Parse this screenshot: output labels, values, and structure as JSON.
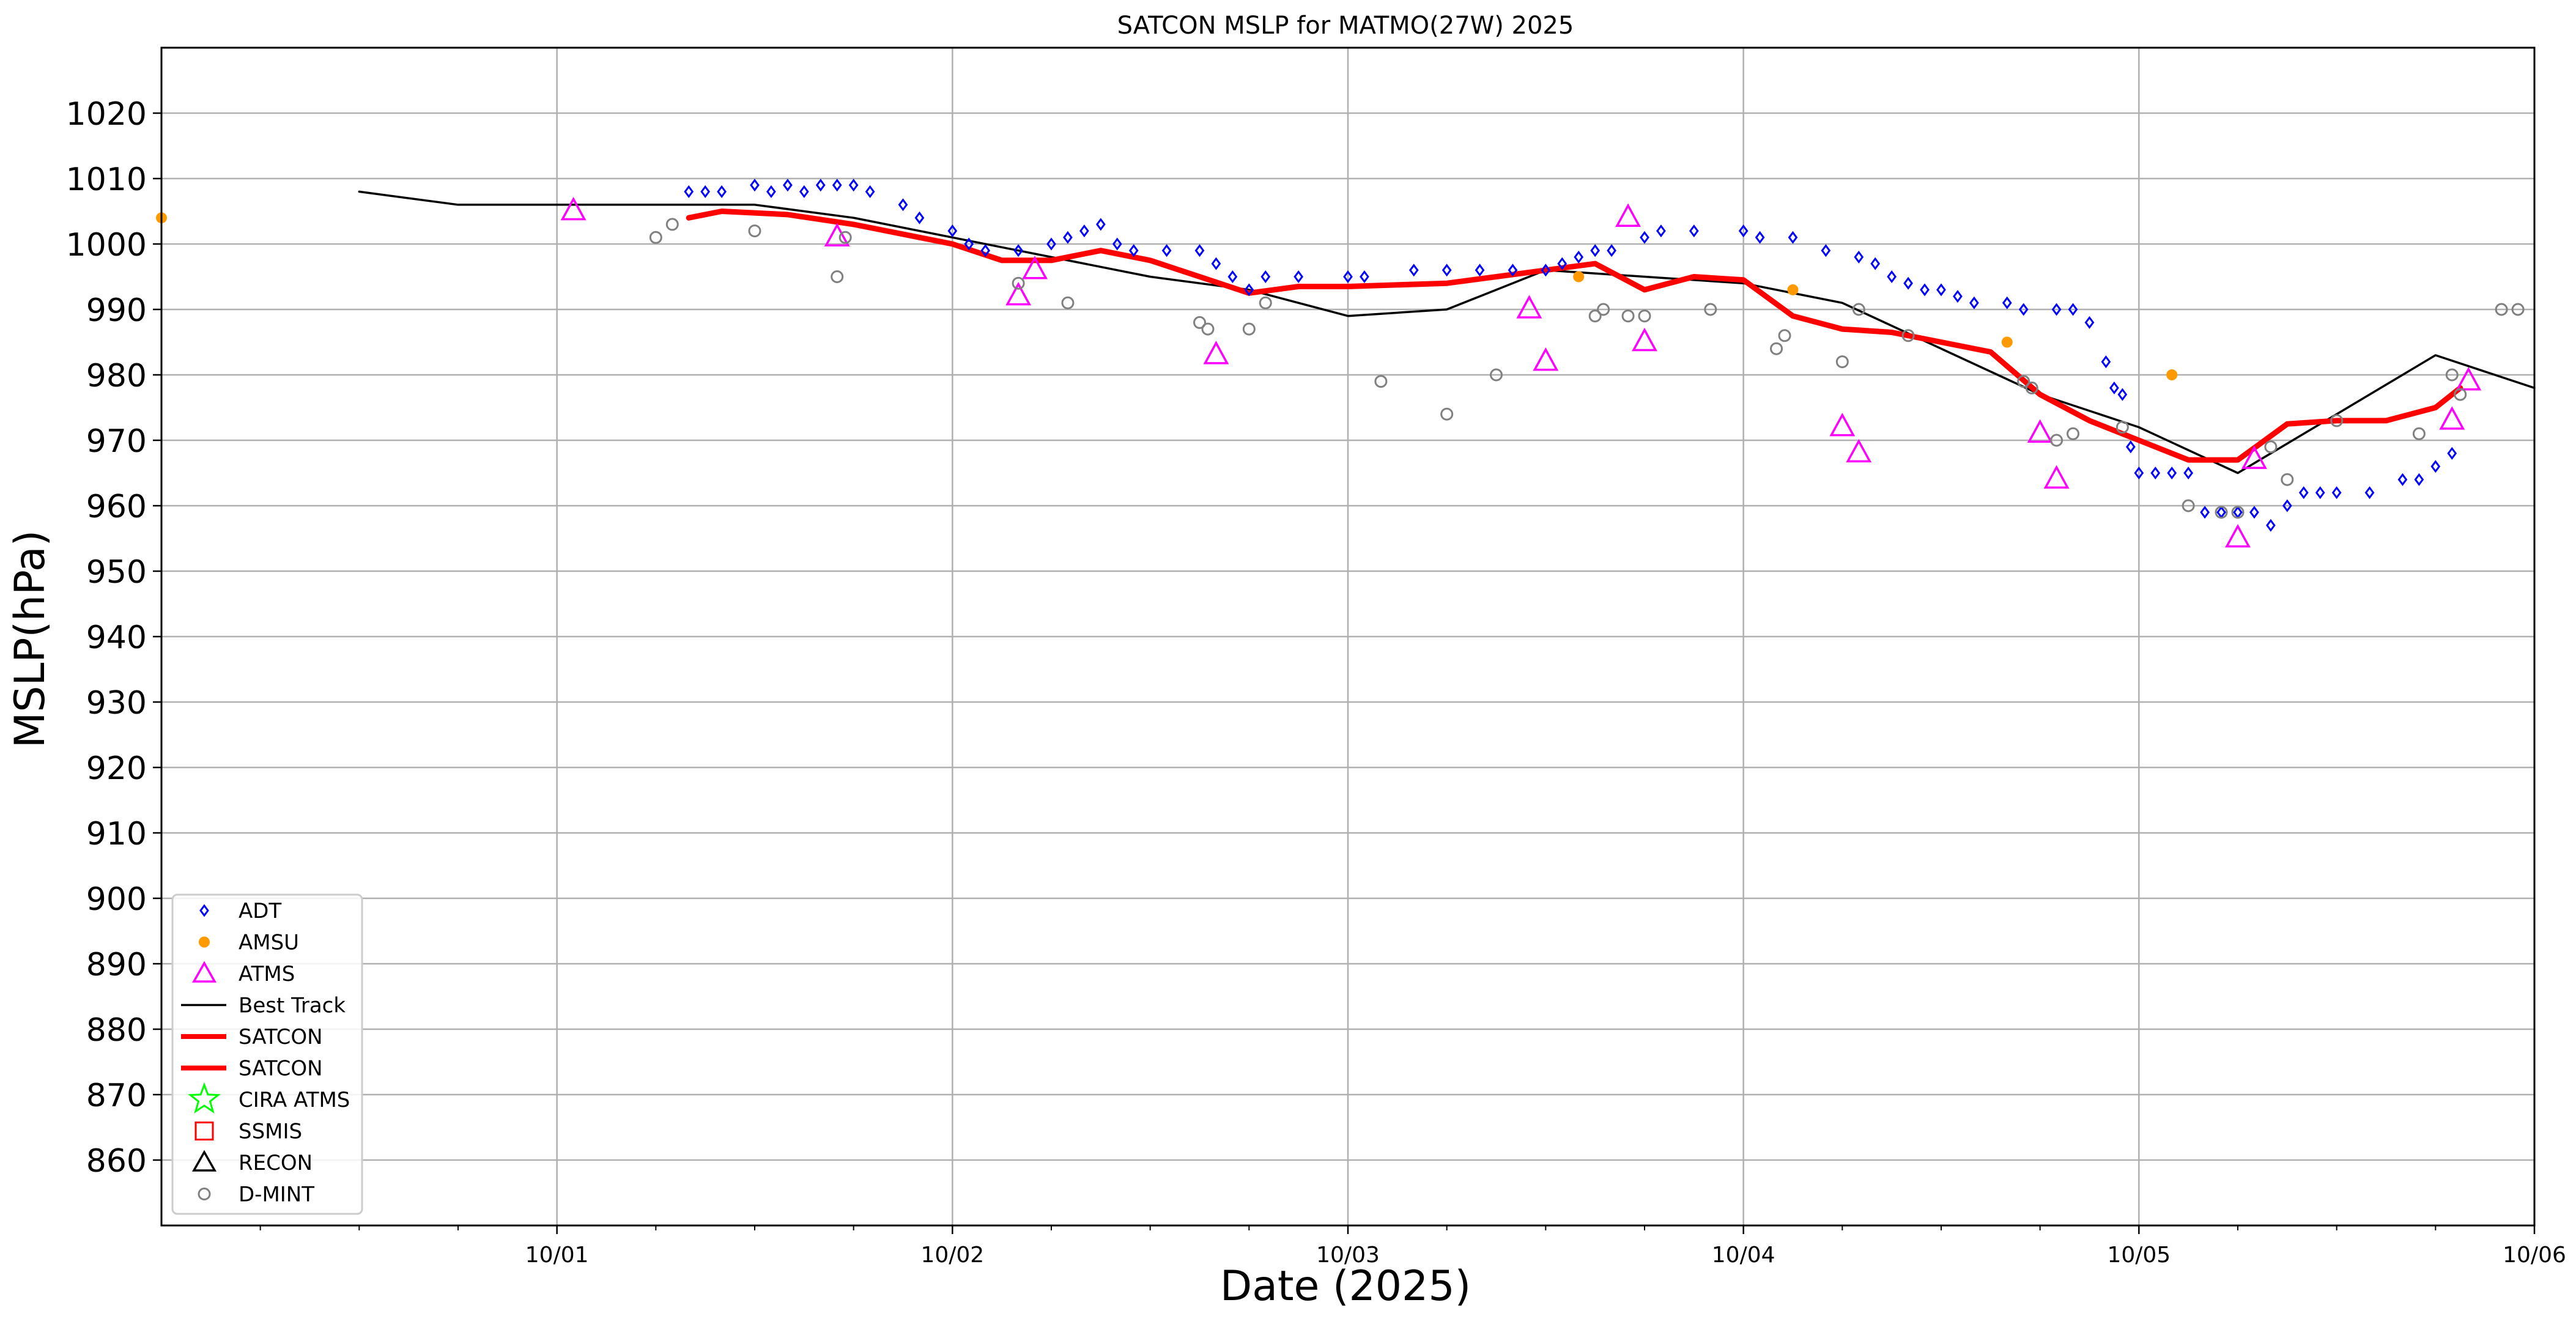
{
  "chart_data": {
    "type": "scatter",
    "title": "SATCON MSLP for MATMO(27W) 2025",
    "xlabel": "Date (2025)",
    "ylabel": "MSLP(hPa)",
    "xlim": [
      "2025-09-30 00:00",
      "2025-10-06 00:00"
    ],
    "ylim": [
      850,
      1030
    ],
    "x_ticks": [
      "10/01",
      "10/02",
      "10/03",
      "10/04",
      "10/05",
      "10/06"
    ],
    "y_ticks": [
      860,
      870,
      880,
      890,
      900,
      910,
      920,
      930,
      940,
      950,
      960,
      970,
      980,
      990,
      1000,
      1010,
      1020
    ],
    "grid": true,
    "legend_position": "lower-left",
    "legend": [
      {
        "label": "ADT",
        "marker": "diamond",
        "color": "#0000ff"
      },
      {
        "label": "AMSU",
        "marker": "dot",
        "color": "#ff9900"
      },
      {
        "label": "ATMS",
        "marker": "triangle",
        "color": "#ff00ff"
      },
      {
        "label": "Best Track",
        "marker": "line",
        "color": "#000000"
      },
      {
        "label": "SATCON",
        "marker": "thick-line",
        "color": "#ff0000"
      },
      {
        "label": "SATCON",
        "marker": "thick-line",
        "color": "#ff0000"
      },
      {
        "label": "CIRA ATMS",
        "marker": "star",
        "color": "#00ff00"
      },
      {
        "label": "SSMIS",
        "marker": "square",
        "color": "#ff0000"
      },
      {
        "label": "RECON",
        "marker": "triangle",
        "color": "#000000"
      },
      {
        "label": "D-MINT",
        "marker": "circle",
        "color": "#808080"
      }
    ],
    "series": [
      {
        "name": "Best Track",
        "style": "line",
        "color": "#000000",
        "points": [
          [
            "2025-09-30 12:00",
            1008
          ],
          [
            "2025-09-30 18:00",
            1006
          ],
          [
            "2025-10-01 00:00",
            1006
          ],
          [
            "2025-10-01 06:00",
            1006
          ],
          [
            "2025-10-01 12:00",
            1006
          ],
          [
            "2025-10-01 18:00",
            1004
          ],
          [
            "2025-10-02 00:00",
            1001
          ],
          [
            "2025-10-02 06:00",
            998
          ],
          [
            "2025-10-02 12:00",
            995
          ],
          [
            "2025-10-02 18:00",
            993
          ],
          [
            "2025-10-03 00:00",
            989
          ],
          [
            "2025-10-03 06:00",
            990
          ],
          [
            "2025-10-03 12:00",
            996
          ],
          [
            "2025-10-03 18:00",
            995
          ],
          [
            "2025-10-04 00:00",
            994
          ],
          [
            "2025-10-04 06:00",
            991
          ],
          [
            "2025-10-04 12:00",
            984
          ],
          [
            "2025-10-04 18:00",
            977
          ],
          [
            "2025-10-05 00:00",
            972
          ],
          [
            "2025-10-05 06:00",
            965
          ],
          [
            "2025-10-05 12:00",
            974
          ],
          [
            "2025-10-05 18:00",
            983
          ],
          [
            "2025-10-06 00:00",
            978
          ]
        ]
      },
      {
        "name": "SATCON",
        "style": "thick-line",
        "color": "#ff0000",
        "points": [
          [
            "2025-10-01 08:00",
            1004
          ],
          [
            "2025-10-01 10:00",
            1005
          ],
          [
            "2025-10-01 14:00",
            1004.5
          ],
          [
            "2025-10-01 18:00",
            1003
          ],
          [
            "2025-10-01 22:00",
            1001
          ],
          [
            "2025-10-02 00:00",
            1000
          ],
          [
            "2025-10-02 03:00",
            997.5
          ],
          [
            "2025-10-02 06:00",
            997.5
          ],
          [
            "2025-10-02 09:00",
            999
          ],
          [
            "2025-10-02 12:00",
            997.5
          ],
          [
            "2025-10-02 15:00",
            995
          ],
          [
            "2025-10-02 18:00",
            992.5
          ],
          [
            "2025-10-02 21:00",
            993.5
          ],
          [
            "2025-10-03 00:00",
            993.5
          ],
          [
            "2025-10-03 06:00",
            994
          ],
          [
            "2025-10-03 12:00",
            996
          ],
          [
            "2025-10-03 15:00",
            997
          ],
          [
            "2025-10-03 18:00",
            993
          ],
          [
            "2025-10-03 21:00",
            995
          ],
          [
            "2025-10-04 00:00",
            994.5
          ],
          [
            "2025-10-04 03:00",
            989
          ],
          [
            "2025-10-04 06:00",
            987
          ],
          [
            "2025-10-04 09:00",
            986.5
          ],
          [
            "2025-10-04 12:00",
            985
          ],
          [
            "2025-10-04 15:00",
            983.5
          ],
          [
            "2025-10-04 18:00",
            977
          ],
          [
            "2025-10-04 21:00",
            973
          ],
          [
            "2025-10-05 00:00",
            970
          ],
          [
            "2025-10-05 03:00",
            967
          ],
          [
            "2025-10-05 06:00",
            967
          ],
          [
            "2025-10-05 09:00",
            972.5
          ],
          [
            "2025-10-05 12:00",
            973
          ],
          [
            "2025-10-05 15:00",
            973
          ],
          [
            "2025-10-05 18:00",
            975
          ],
          [
            "2025-10-05 19:30",
            978
          ]
        ]
      },
      {
        "name": "ADT",
        "style": "diamond",
        "color": "#0000ff",
        "points": [
          [
            "2025-10-01 08:00",
            1008
          ],
          [
            "2025-10-01 09:00",
            1008
          ],
          [
            "2025-10-01 10:00",
            1008
          ],
          [
            "2025-10-01 12:00",
            1009
          ],
          [
            "2025-10-01 13:00",
            1008
          ],
          [
            "2025-10-01 14:00",
            1009
          ],
          [
            "2025-10-01 15:00",
            1008
          ],
          [
            "2025-10-01 16:00",
            1009
          ],
          [
            "2025-10-01 17:00",
            1009
          ],
          [
            "2025-10-01 18:00",
            1009
          ],
          [
            "2025-10-01 19:00",
            1008
          ],
          [
            "2025-10-01 21:00",
            1006
          ],
          [
            "2025-10-01 22:00",
            1004
          ],
          [
            "2025-10-02 00:00",
            1002
          ],
          [
            "2025-10-02 01:00",
            1000
          ],
          [
            "2025-10-02 02:00",
            999
          ],
          [
            "2025-10-02 04:00",
            999
          ],
          [
            "2025-10-02 06:00",
            1000
          ],
          [
            "2025-10-02 07:00",
            1001
          ],
          [
            "2025-10-02 08:00",
            1002
          ],
          [
            "2025-10-02 09:00",
            1003
          ],
          [
            "2025-10-02 10:00",
            1000
          ],
          [
            "2025-10-02 11:00",
            999
          ],
          [
            "2025-10-02 13:00",
            999
          ],
          [
            "2025-10-02 15:00",
            999
          ],
          [
            "2025-10-02 16:00",
            997
          ],
          [
            "2025-10-02 17:00",
            995
          ],
          [
            "2025-10-02 18:00",
            993
          ],
          [
            "2025-10-02 19:00",
            995
          ],
          [
            "2025-10-02 21:00",
            995
          ],
          [
            "2025-10-03 00:00",
            995
          ],
          [
            "2025-10-03 01:00",
            995
          ],
          [
            "2025-10-03 04:00",
            996
          ],
          [
            "2025-10-03 06:00",
            996
          ],
          [
            "2025-10-03 08:00",
            996
          ],
          [
            "2025-10-03 10:00",
            996
          ],
          [
            "2025-10-03 12:00",
            996
          ],
          [
            "2025-10-03 13:00",
            997
          ],
          [
            "2025-10-03 14:00",
            998
          ],
          [
            "2025-10-03 15:00",
            999
          ],
          [
            "2025-10-03 16:00",
            999
          ],
          [
            "2025-10-03 18:00",
            1001
          ],
          [
            "2025-10-03 19:00",
            1002
          ],
          [
            "2025-10-03 21:00",
            1002
          ],
          [
            "2025-10-04 00:00",
            1002
          ],
          [
            "2025-10-04 01:00",
            1001
          ],
          [
            "2025-10-04 03:00",
            1001
          ],
          [
            "2025-10-04 05:00",
            999
          ],
          [
            "2025-10-04 07:00",
            998
          ],
          [
            "2025-10-04 08:00",
            997
          ],
          [
            "2025-10-04 09:00",
            995
          ],
          [
            "2025-10-04 10:00",
            994
          ],
          [
            "2025-10-04 11:00",
            993
          ],
          [
            "2025-10-04 12:00",
            993
          ],
          [
            "2025-10-04 13:00",
            992
          ],
          [
            "2025-10-04 14:00",
            991
          ],
          [
            "2025-10-04 16:00",
            991
          ],
          [
            "2025-10-04 17:00",
            990
          ],
          [
            "2025-10-04 19:00",
            990
          ],
          [
            "2025-10-04 20:00",
            990
          ],
          [
            "2025-10-04 21:00",
            988
          ],
          [
            "2025-10-04 22:00",
            982
          ],
          [
            "2025-10-04 22:30",
            978
          ],
          [
            "2025-10-04 23:00",
            977
          ],
          [
            "2025-10-04 23:30",
            969
          ],
          [
            "2025-10-05 00:00",
            965
          ],
          [
            "2025-10-05 01:00",
            965
          ],
          [
            "2025-10-05 02:00",
            965
          ],
          [
            "2025-10-05 03:00",
            965
          ],
          [
            "2025-10-05 04:00",
            959
          ],
          [
            "2025-10-05 05:00",
            959
          ],
          [
            "2025-10-05 06:00",
            959
          ],
          [
            "2025-10-05 07:00",
            959
          ],
          [
            "2025-10-05 08:00",
            957
          ],
          [
            "2025-10-05 09:00",
            960
          ],
          [
            "2025-10-05 10:00",
            962
          ],
          [
            "2025-10-05 11:00",
            962
          ],
          [
            "2025-10-05 12:00",
            962
          ],
          [
            "2025-10-05 14:00",
            962
          ],
          [
            "2025-10-05 16:00",
            964
          ],
          [
            "2025-10-05 17:00",
            964
          ],
          [
            "2025-10-05 18:00",
            966
          ],
          [
            "2025-10-05 19:00",
            968
          ]
        ]
      },
      {
        "name": "AMSU",
        "style": "dot",
        "color": "#ff9900",
        "points": [
          [
            "2025-09-30 00:00",
            1004
          ],
          [
            "2025-10-03 14:00",
            995
          ],
          [
            "2025-10-04 03:00",
            993
          ],
          [
            "2025-10-04 16:00",
            985
          ],
          [
            "2025-10-05 02:00",
            980
          ]
        ]
      },
      {
        "name": "ATMS",
        "style": "triangle",
        "color": "#ff00ff",
        "points": [
          [
            "2025-10-01 01:00",
            1005
          ],
          [
            "2025-10-01 17:00",
            1001
          ],
          [
            "2025-10-02 04:00",
            992
          ],
          [
            "2025-10-02 05:00",
            996
          ],
          [
            "2025-10-02 16:00",
            983
          ],
          [
            "2025-10-03 11:00",
            990
          ],
          [
            "2025-10-03 12:00",
            982
          ],
          [
            "2025-10-03 17:00",
            1004
          ],
          [
            "2025-10-03 18:00",
            985
          ],
          [
            "2025-10-04 06:00",
            972
          ],
          [
            "2025-10-04 07:00",
            968
          ],
          [
            "2025-10-04 18:00",
            971
          ],
          [
            "2025-10-04 19:00",
            964
          ],
          [
            "2025-10-05 06:00",
            955
          ],
          [
            "2025-10-05 07:00",
            967
          ],
          [
            "2025-10-05 19:00",
            973
          ],
          [
            "2025-10-05 20:00",
            979
          ]
        ]
      },
      {
        "name": "D-MINT",
        "style": "circle",
        "color": "#808080",
        "points": [
          [
            "2025-10-01 06:00",
            1001
          ],
          [
            "2025-10-01 07:00",
            1003
          ],
          [
            "2025-10-01 12:00",
            1002
          ],
          [
            "2025-10-01 17:00",
            995
          ],
          [
            "2025-10-01 17:30",
            1001
          ],
          [
            "2025-10-02 04:00",
            994
          ],
          [
            "2025-10-02 07:00",
            991
          ],
          [
            "2025-10-02 15:00",
            988
          ],
          [
            "2025-10-02 15:30",
            987
          ],
          [
            "2025-10-02 18:00",
            987
          ],
          [
            "2025-10-02 19:00",
            991
          ],
          [
            "2025-10-03 02:00",
            979
          ],
          [
            "2025-10-03 06:00",
            974
          ],
          [
            "2025-10-03 09:00",
            980
          ],
          [
            "2025-10-03 15:00",
            989
          ],
          [
            "2025-10-03 15:30",
            990
          ],
          [
            "2025-10-03 17:00",
            989
          ],
          [
            "2025-10-03 18:00",
            989
          ],
          [
            "2025-10-03 22:00",
            990
          ],
          [
            "2025-10-04 02:00",
            984
          ],
          [
            "2025-10-04 02:30",
            986
          ],
          [
            "2025-10-04 06:00",
            982
          ],
          [
            "2025-10-04 07:00",
            990
          ],
          [
            "2025-10-04 10:00",
            986
          ],
          [
            "2025-10-04 17:00",
            979
          ],
          [
            "2025-10-04 17:30",
            978
          ],
          [
            "2025-10-04 19:00",
            970
          ],
          [
            "2025-10-04 20:00",
            971
          ],
          [
            "2025-10-04 23:00",
            972
          ],
          [
            "2025-10-05 03:00",
            960
          ],
          [
            "2025-10-05 05:00",
            959
          ],
          [
            "2025-10-05 06:00",
            959
          ],
          [
            "2025-10-05 08:00",
            969
          ],
          [
            "2025-10-05 09:00",
            964
          ],
          [
            "2025-10-05 12:00",
            973
          ],
          [
            "2025-10-05 17:00",
            971
          ],
          [
            "2025-10-05 19:00",
            980
          ],
          [
            "2025-10-05 19:30",
            977
          ],
          [
            "2025-10-05 22:00",
            990
          ],
          [
            "2025-10-05 23:00",
            990
          ]
        ]
      }
    ]
  }
}
